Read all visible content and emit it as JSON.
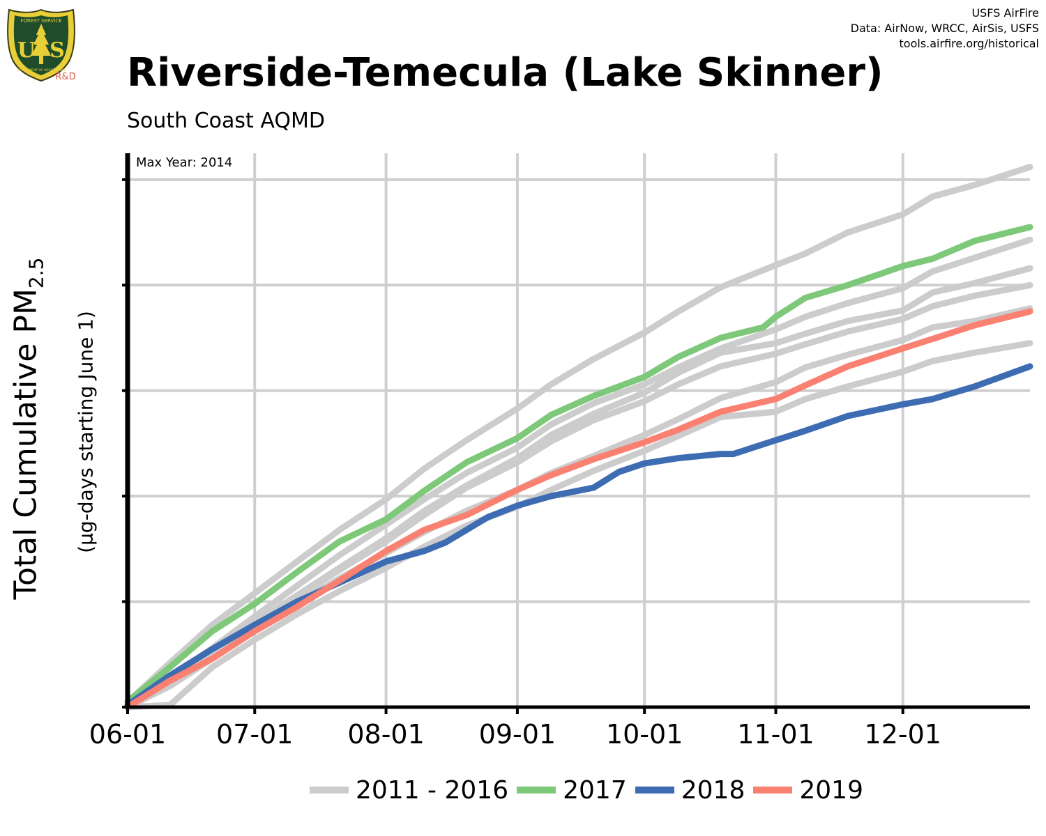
{
  "logo": {
    "top_text": "FOREST SERVICE",
    "letters": "US",
    "bottom_text": "DEPARTMENT OF AGRICULTURE",
    "tag": "R&D"
  },
  "credits": [
    "USFS AirFire",
    "Data: AirNow, WRCC, AirSis, USFS",
    "tools.airfire.org/historical"
  ],
  "title": "Riverside-Temecula (Lake Skinner)",
  "subtitle": "South Coast AQMD",
  "ylabel_main": "Total Cumulative PM",
  "ylabel_sub_script": "2.5",
  "ylabel_secondary": "(µg-days starting June 1)",
  "annotation": "Max Year: 2014",
  "legend": [
    {
      "label": "2011 - 2016",
      "color": "#cccccc"
    },
    {
      "label": "2017",
      "color": "#7ec87a"
    },
    {
      "label": "2018",
      "color": "#3d6cb3"
    },
    {
      "label": "2019",
      "color": "#fa8072"
    }
  ],
  "chart_data": {
    "type": "line",
    "xlabel": "",
    "ylabel": "Total Cumulative PM2.5 (µg-days starting June 1)",
    "x_ticks": [
      "06-01",
      "07-01",
      "08-01",
      "09-01",
      "10-01",
      "11-01",
      "12-01"
    ],
    "x_tick_days": [
      0,
      30,
      61,
      92,
      122,
      153,
      183
    ],
    "xlim_days": [
      0,
      213
    ],
    "y_tick_labels_shown": false,
    "y_gridlines": [
      1,
      2,
      3,
      4,
      5
    ],
    "ylim": [
      0,
      5.25
    ],
    "grid": true,
    "legend_position": "bottom",
    "series": [
      {
        "name": "2011 - 2016",
        "color": "#cccccc",
        "x_days": [
          0,
          10,
          20,
          30,
          40,
          50,
          61,
          70,
          80,
          92,
          100,
          110,
          122,
          130,
          140,
          153,
          160,
          170,
          183,
          190,
          200,
          213
        ],
        "values": [
          0.05,
          0.42,
          0.78,
          1.08,
          1.38,
          1.68,
          1.97,
          2.26,
          2.53,
          2.83,
          3.06,
          3.3,
          3.55,
          3.75,
          3.98,
          4.19,
          4.3,
          4.5,
          4.67,
          4.84,
          4.95,
          5.12
        ]
      },
      {
        "name": "2011 - 2016",
        "color": "#cccccc",
        "x_days": [
          0,
          10,
          20,
          30,
          40,
          50,
          61,
          70,
          80,
          92,
          100,
          110,
          122,
          130,
          140,
          153,
          160,
          170,
          183,
          190,
          200,
          213
        ],
        "values": [
          0.0,
          0.28,
          0.56,
          0.86,
          1.15,
          1.44,
          1.73,
          1.97,
          2.22,
          2.46,
          2.68,
          2.88,
          3.06,
          3.22,
          3.4,
          3.58,
          3.7,
          3.83,
          3.97,
          4.13,
          4.26,
          4.43
        ]
      },
      {
        "name": "2011 - 2016",
        "color": "#cccccc",
        "x_days": [
          0,
          10,
          20,
          30,
          40,
          50,
          61,
          70,
          80,
          92,
          100,
          110,
          122,
          130,
          140,
          153,
          160,
          170,
          183,
          190,
          200,
          213
        ],
        "values": [
          0.0,
          0.22,
          0.52,
          0.8,
          1.06,
          1.32,
          1.6,
          1.86,
          2.1,
          2.36,
          2.58,
          2.78,
          2.98,
          3.17,
          3.36,
          3.45,
          3.54,
          3.66,
          3.76,
          3.93,
          4.02,
          4.16
        ]
      },
      {
        "name": "2011 - 2016",
        "color": "#cccccc",
        "x_days": [
          0,
          10,
          20,
          30,
          40,
          50,
          61,
          70,
          80,
          92,
          100,
          110,
          122,
          130,
          140,
          153,
          160,
          170,
          183,
          190,
          200,
          213
        ],
        "values": [
          0.0,
          0.24,
          0.52,
          0.78,
          1.04,
          1.3,
          1.57,
          1.82,
          2.08,
          2.32,
          2.52,
          2.72,
          2.9,
          3.06,
          3.23,
          3.35,
          3.44,
          3.56,
          3.68,
          3.8,
          3.9,
          4.0
        ]
      },
      {
        "name": "2011 - 2016",
        "color": "#cccccc",
        "x_days": [
          0,
          10,
          20,
          30,
          40,
          50,
          61,
          70,
          80,
          92,
          100,
          110,
          122,
          130,
          140,
          153,
          160,
          170,
          183,
          190,
          200,
          213
        ],
        "values": [
          0.0,
          0.2,
          0.46,
          0.74,
          0.98,
          1.22,
          1.46,
          1.66,
          1.86,
          2.06,
          2.22,
          2.38,
          2.58,
          2.73,
          2.93,
          3.08,
          3.22,
          3.34,
          3.48,
          3.6,
          3.66,
          3.78
        ]
      },
      {
        "name": "2011 - 2016",
        "color": "#cccccc",
        "x_days": [
          0,
          10,
          20,
          30,
          40,
          50,
          61,
          70,
          80,
          92,
          100,
          110,
          122,
          130,
          140,
          153,
          160,
          170,
          183,
          190,
          200,
          213
        ],
        "values": [
          0.0,
          0.02,
          0.38,
          0.64,
          0.88,
          1.1,
          1.32,
          1.52,
          1.72,
          1.9,
          2.06,
          2.24,
          2.43,
          2.57,
          2.75,
          2.8,
          2.92,
          3.04,
          3.18,
          3.28,
          3.36,
          3.45
        ]
      },
      {
        "name": "2017",
        "color": "#7ec87a",
        "x_days": [
          0,
          10,
          20,
          30,
          40,
          50,
          61,
          70,
          80,
          92,
          100,
          110,
          122,
          130,
          140,
          150,
          153,
          160,
          170,
          183,
          190,
          200,
          213
        ],
        "values": [
          0.05,
          0.38,
          0.72,
          0.98,
          1.28,
          1.57,
          1.78,
          2.05,
          2.32,
          2.55,
          2.77,
          2.95,
          3.13,
          3.32,
          3.5,
          3.6,
          3.7,
          3.88,
          4.0,
          4.18,
          4.25,
          4.42,
          4.55
        ]
      },
      {
        "name": "2018",
        "color": "#3d6cb3",
        "x_days": [
          0,
          10,
          20,
          30,
          40,
          50,
          61,
          70,
          75,
          85,
          92,
          100,
          110,
          116,
          122,
          130,
          140,
          143,
          153,
          160,
          170,
          183,
          190,
          200,
          213
        ],
        "values": [
          0.02,
          0.3,
          0.55,
          0.78,
          1.0,
          1.18,
          1.38,
          1.48,
          1.56,
          1.8,
          1.91,
          2.0,
          2.08,
          2.23,
          2.31,
          2.36,
          2.4,
          2.4,
          2.53,
          2.62,
          2.76,
          2.87,
          2.92,
          3.04,
          3.23
        ]
      },
      {
        "name": "2019",
        "color": "#fa8072",
        "x_days": [
          0,
          10,
          20,
          30,
          40,
          50,
          61,
          70,
          80,
          92,
          100,
          110,
          122,
          130,
          140,
          153,
          160,
          170,
          183,
          190,
          200,
          213
        ],
        "values": [
          0.0,
          0.25,
          0.46,
          0.72,
          0.95,
          1.2,
          1.48,
          1.68,
          1.82,
          2.06,
          2.2,
          2.35,
          2.51,
          2.63,
          2.8,
          2.92,
          3.05,
          3.23,
          3.4,
          3.49,
          3.62,
          3.75
        ]
      }
    ]
  }
}
